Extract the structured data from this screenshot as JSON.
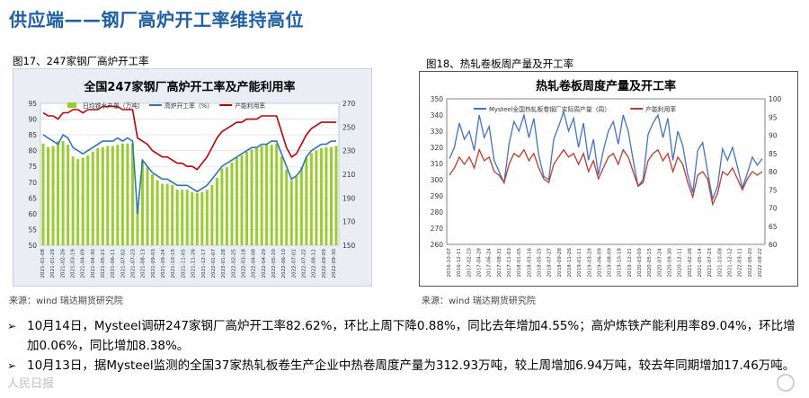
{
  "page": {
    "title": "供应端——钢厂高炉开工率维持高位"
  },
  "figure1": {
    "caption": "图17、247家钢厂高炉开工率",
    "source": "来源：wind 瑞达期货研究院"
  },
  "figure2": {
    "caption": "图18、热轧卷板周产量及开工率",
    "source": "来源：wind 瑞达期货研究院"
  },
  "bullets": [
    "10月14日，Mysteel调研247家钢厂高炉开工率82.62%，环比上周下降0.88%，同比去年增加4.55%；高炉炼铁产能利用率89.04%，环比增加0.06%，同比增加8.38%。",
    "10月13日，据Mysteel监测的全国37家热轧板卷生产企业中热卷周度产量为312.93万吨，较上周增加6.94万吨，较去年同期增加17.46万吨。"
  ],
  "watermark": "人民日报",
  "chart_data": [
    {
      "type": "bar",
      "title": "全国247家钢厂高炉开工率及产能利用率",
      "legend": [
        "日均铁水产量（万吨）",
        "高炉开工率（%）",
        "产能利用率"
      ],
      "legend_position": "top",
      "y_left": {
        "ylim": [
          50,
          95
        ],
        "ticks": [
          50,
          55,
          60,
          65,
          70,
          75,
          80,
          85,
          90,
          95
        ]
      },
      "y_right": {
        "ylim": [
          150,
          270
        ],
        "ticks": [
          150,
          170,
          190,
          210,
          230,
          250,
          270
        ]
      },
      "x_tick_labels": [
        "2021-01-08",
        "2021-01-29",
        "2021-02-26",
        "2021-03-19",
        "2021-04-09",
        "2021-04-30",
        "2021-05-21",
        "2021-06-11",
        "2021-07-02",
        "2021-07-23",
        "2021-08-13",
        "2021-09-03",
        "2021-09-24",
        "2021-10-15",
        "2021-11-05",
        "2021-11-26",
        "2021-12-17",
        "2022-01-07",
        "2022-01-28",
        "2022-02-25",
        "2022-03-18",
        "2022-04-08",
        "2022-04-29",
        "2022-05-20",
        "2022-06-10",
        "2022-07-01",
        "2022-07-22",
        "2022-08-12",
        "2022-09-09",
        "2022-09-30"
      ],
      "series": [
        {
          "name": "日均铁水产量（万吨）",
          "color": "#9acd32",
          "axis": "right",
          "values": [
            236,
            233,
            234,
            238,
            238,
            235,
            225,
            223,
            224,
            226,
            229,
            232,
            233,
            234,
            234,
            235,
            236,
            236,
            236,
            186,
            222,
            216,
            210,
            205,
            202,
            202,
            201,
            197,
            197,
            197,
            195,
            194,
            195,
            197,
            201,
            207,
            215,
            216,
            220,
            224,
            226,
            229,
            231,
            232,
            234,
            235,
            235,
            236,
            225,
            214,
            205,
            208,
            216,
            224,
            228,
            230,
            232,
            233,
            233,
            234
          ]
        },
        {
          "name": "高炉开工率（%）",
          "color": "#2e75b6",
          "axis": "left",
          "values": [
            85,
            84,
            83,
            82,
            85,
            84,
            81,
            80,
            79,
            80,
            81,
            82,
            83,
            83,
            83,
            84,
            83,
            84,
            83,
            60,
            77,
            75,
            73,
            72,
            71,
            71,
            70,
            69,
            69,
            69,
            68,
            67,
            68,
            69,
            71,
            73,
            75,
            76,
            77,
            78,
            79,
            80,
            81,
            81,
            82,
            82,
            83,
            83,
            79,
            75,
            71,
            72,
            74,
            78,
            80,
            81,
            82,
            82,
            83,
            83
          ]
        },
        {
          "name": "产能利用率",
          "color": "#c00000",
          "axis": "left",
          "values": [
            92,
            91,
            91,
            90,
            92,
            92,
            93,
            93,
            92,
            93,
            93,
            93,
            94,
            94,
            94,
            94,
            93,
            93,
            93,
            84,
            83,
            82,
            80,
            79,
            78,
            78,
            77,
            76,
            76,
            75,
            75,
            74,
            76,
            78,
            81,
            84,
            86,
            87,
            88,
            89,
            89,
            90,
            90,
            90,
            91,
            91,
            91,
            91,
            86,
            81,
            78,
            79,
            82,
            85,
            87,
            88,
            89,
            89,
            89,
            89
          ]
        }
      ]
    },
    {
      "type": "line",
      "title": "热轧卷板周度产量及开工率",
      "legend": [
        "Mysteel全国热轧板卷钢厂实际周产量（周）",
        "产能利用率"
      ],
      "legend_position": "top",
      "y_left": {
        "ylim": [
          260,
          350
        ],
        "ticks": [
          260,
          270,
          280,
          290,
          300,
          310,
          320,
          330,
          340,
          350
        ]
      },
      "y_right": {
        "ylim": [
          60,
          100
        ],
        "ticks": [
          60,
          65,
          70,
          75,
          80,
          85,
          90,
          95,
          100
        ]
      },
      "x_tick_labels": [
        "2016-10-07",
        "2016-12-11",
        "2017-02-10",
        "2017-04-28",
        "2017-06-24",
        "2017-08-31",
        "2017-11-03",
        "2018-01-05",
        "2018-03-16",
        "2018-05-25",
        "2018-07-27",
        "2018-09-28",
        "2018-11-26",
        "2019-01-11",
        "2019-03-29",
        "2019-06-09",
        "2019-08-09",
        "2019-10-18",
        "2019-12-21",
        "2020-03-09",
        "2020-05-15",
        "2020-07-24",
        "2020-09-30",
        "2020-12-11",
        "2021-02-26",
        "2021-05-14",
        "2021-07-23",
        "2021-10-08",
        "2021-12-12",
        "2022-03-11",
        "2022-05-20",
        "2022-08-22"
      ],
      "series": [
        {
          "name": "Mysteel全国热轧板卷钢厂实际周产量（周）",
          "color": "#4472c4",
          "axis": "left",
          "values": [
            313,
            320,
            335,
            325,
            330,
            318,
            340,
            326,
            333,
            312,
            305,
            298,
            322,
            336,
            330,
            340,
            326,
            338,
            315,
            302,
            300,
            325,
            333,
            342,
            330,
            338,
            320,
            335,
            312,
            325,
            303,
            318,
            330,
            336,
            322,
            340,
            330,
            312,
            296,
            300,
            328,
            335,
            340,
            326,
            338,
            312,
            330,
            321,
            303,
            292,
            318,
            323,
            305,
            288,
            296,
            319,
            312,
            320,
            308,
            295,
            304,
            314,
            309,
            313
          ]
        },
        {
          "name": "产能利用率",
          "color": "#c0392b",
          "axis": "right",
          "values": [
            79,
            81,
            84,
            82,
            84,
            81,
            86,
            83,
            84,
            80,
            79,
            77,
            82,
            85,
            84,
            86,
            83,
            85,
            81,
            78,
            77,
            82,
            84,
            86,
            84,
            85,
            82,
            85,
            80,
            83,
            78,
            81,
            84,
            85,
            82,
            86,
            84,
            80,
            76,
            77,
            83,
            85,
            86,
            83,
            85,
            80,
            84,
            82,
            77,
            73,
            79,
            80,
            78,
            71,
            74,
            80,
            79,
            81,
            78,
            75,
            78,
            80,
            79,
            80
          ]
        }
      ]
    }
  ]
}
